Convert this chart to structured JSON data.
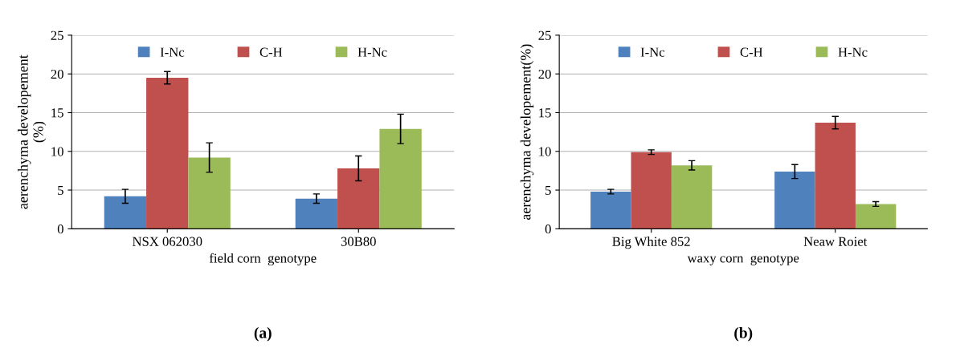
{
  "chart_data": [
    {
      "type": "bar",
      "categories": [
        "NSX 062030",
        "30B80"
      ],
      "xlabel": "field corn  genotype",
      "ylabel": "aerenchyma developement\n(%)",
      "ylim": [
        0,
        25
      ],
      "yticks": [
        0,
        5,
        10,
        15,
        20,
        25
      ],
      "grid": "y",
      "legend": "top",
      "annotations": [
        "(a)"
      ],
      "series": [
        {
          "name": "I-Nc",
          "color": "#4f81bd",
          "values": [
            4.2,
            3.9
          ],
          "errors": [
            0.9,
            0.6
          ]
        },
        {
          "name": "C-H",
          "color": "#c0504d",
          "values": [
            19.5,
            7.8
          ],
          "errors": [
            0.8,
            1.6
          ]
        },
        {
          "name": "H-Nc",
          "color": "#9bbb59",
          "values": [
            9.2,
            12.9
          ],
          "errors": [
            1.9,
            1.9
          ]
        }
      ]
    },
    {
      "type": "bar",
      "categories": [
        "Big White 852",
        "Neaw Roiet"
      ],
      "xlabel": "waxy corn  genotype",
      "ylabel": "aerenchyma developement(%)",
      "ylim": [
        0,
        25
      ],
      "yticks": [
        0,
        5,
        10,
        15,
        20,
        25
      ],
      "grid": "y",
      "legend": "top",
      "annotations": [
        "(b)"
      ],
      "series": [
        {
          "name": "I-Nc",
          "color": "#4f81bd",
          "values": [
            4.8,
            7.4
          ],
          "errors": [
            0.3,
            0.9
          ]
        },
        {
          "name": "C-H",
          "color": "#c0504d",
          "values": [
            9.9,
            13.7
          ],
          "errors": [
            0.3,
            0.8
          ]
        },
        {
          "name": "H-Nc",
          "color": "#9bbb59",
          "values": [
            8.2,
            3.2
          ],
          "errors": [
            0.6,
            0.3
          ]
        }
      ]
    }
  ]
}
